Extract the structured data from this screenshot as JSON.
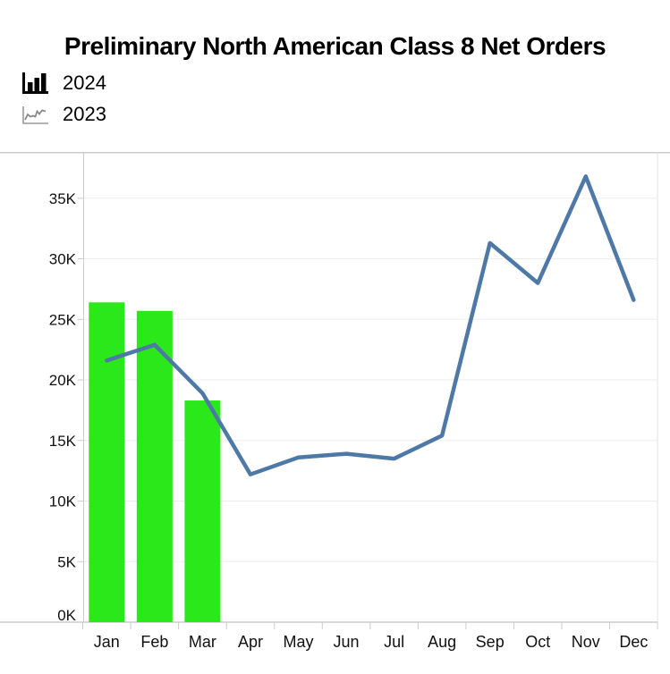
{
  "header": {
    "title": "Preliminary North American Class 8 Net Orders",
    "legend": [
      {
        "label": "2024",
        "icon": "bar-chart-icon"
      },
      {
        "label": "2023",
        "icon": "line-chart-icon"
      }
    ]
  },
  "colors": {
    "bar_green": "#2BE81B",
    "line_blue": "#4E79A7",
    "gridline": "#EDEDED",
    "axis": "#CCCCCC",
    "plot_right_border": "#E2E2E2",
    "text": "#111111",
    "legend_line_icon_gray": "#8A8A8A"
  },
  "chart_data": {
    "type": "bar",
    "subtype": "combo-bar-line",
    "title": "Preliminary North American Class 8 Net Orders",
    "categories": [
      "Jan",
      "Feb",
      "Mar",
      "Apr",
      "May",
      "Jun",
      "Jul",
      "Aug",
      "Sep",
      "Oct",
      "Nov",
      "Dec"
    ],
    "series": [
      {
        "name": "2024",
        "type": "bar",
        "color": "#2BE81B",
        "values": [
          26400,
          25700,
          18300,
          null,
          null,
          null,
          null,
          null,
          null,
          null,
          null,
          null
        ]
      },
      {
        "name": "2023",
        "type": "line",
        "color": "#4E79A7",
        "values": [
          21600,
          22900,
          18900,
          12200,
          13600,
          13900,
          13500,
          15400,
          31300,
          28000,
          36800,
          26600
        ]
      }
    ],
    "xlabel": "",
    "ylabel": "",
    "yticks": [
      "0K",
      "5K",
      "10K",
      "15K",
      "20K",
      "25K",
      "30K",
      "35K"
    ],
    "ytick_values": [
      0,
      5000,
      10000,
      15000,
      20000,
      25000,
      30000,
      35000
    ],
    "ylim": [
      0,
      38800
    ],
    "grid": true,
    "legend_position": "top-left"
  }
}
